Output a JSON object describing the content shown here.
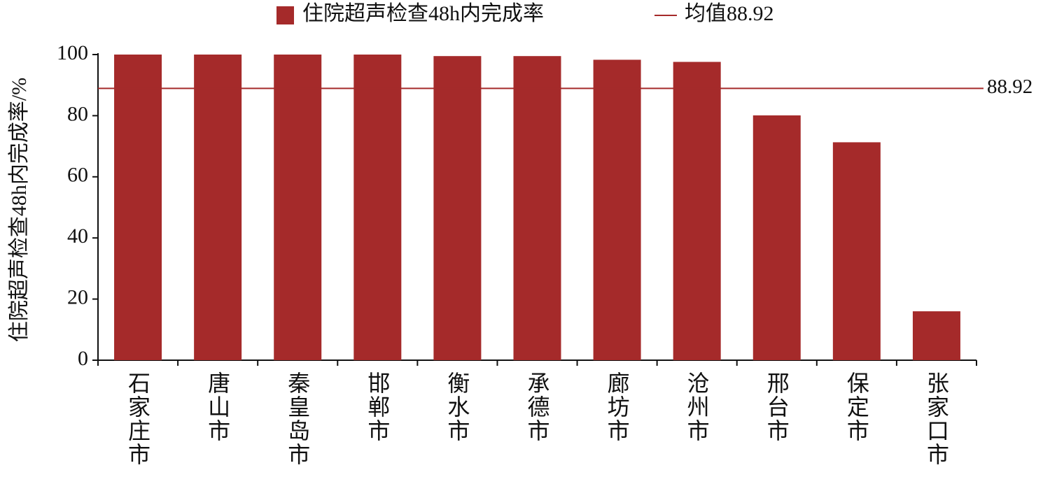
{
  "chart_data": {
    "type": "bar",
    "ylabel": "住院超声检查48h内完成率/%",
    "categories": [
      "石家庄市",
      "唐山市",
      "秦皇岛市",
      "邯郸市",
      "衡水市",
      "承德市",
      "廊坊市",
      "沧州市",
      "邢台市",
      "保定市",
      "张家口市"
    ],
    "series": [
      {
        "name": "住院超声检查48h内完成率",
        "color": "#a52a2a",
        "values": [
          100,
          100,
          100,
          100,
          99.5,
          99.5,
          98.3,
          97.6,
          80.1,
          71.3,
          16
        ]
      }
    ],
    "reference_line": {
      "name": "均值88.92",
      "value": 88.92,
      "color": "#a52a2a"
    },
    "ylim": [
      0,
      100
    ],
    "yticks": [
      0,
      20,
      40,
      60,
      80,
      100
    ],
    "legend_position": "top"
  }
}
